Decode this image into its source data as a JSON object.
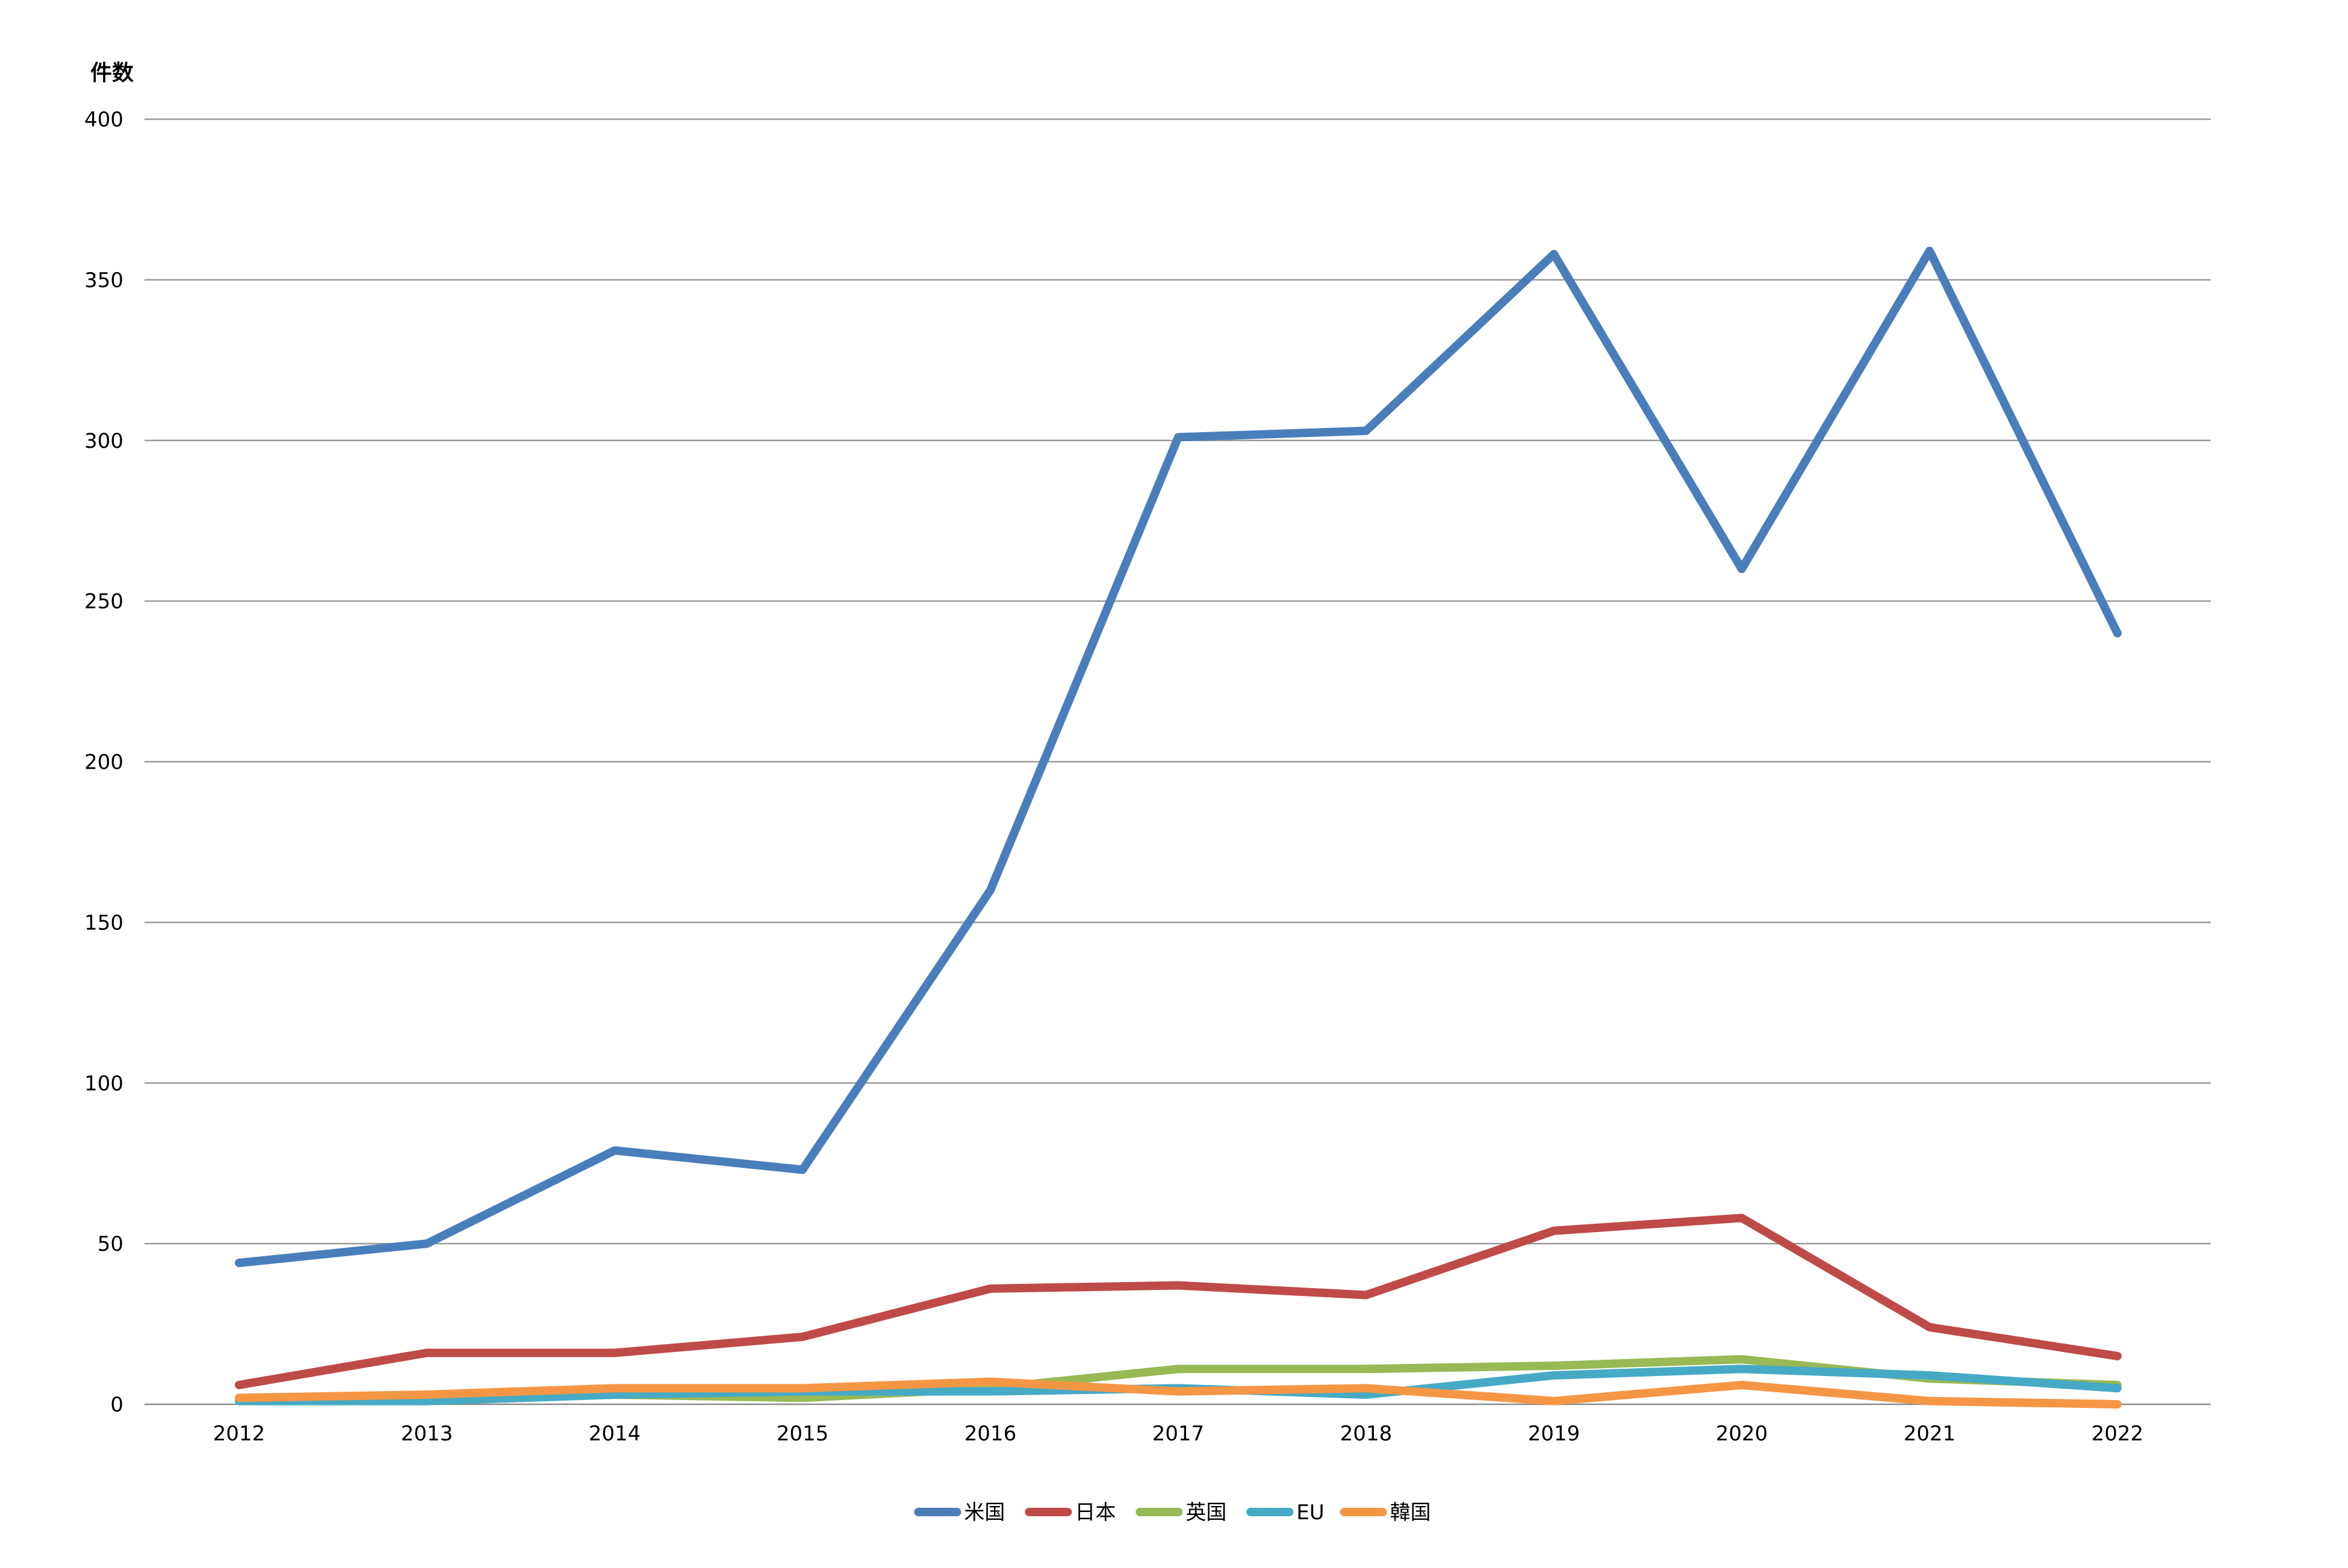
{
  "chart_data": {
    "type": "line",
    "title": "",
    "xlabel": "",
    "ylabel": "件数",
    "ylim": [
      0,
      400
    ],
    "yticks": [
      0,
      50,
      100,
      150,
      200,
      250,
      300,
      350,
      400
    ],
    "grid": true,
    "legend_position": "bottom",
    "categories": [
      "2012",
      "2013",
      "2014",
      "2015",
      "2016",
      "2017",
      "2018",
      "2019",
      "2020",
      "2021",
      "2022"
    ],
    "series": [
      {
        "name": "米国",
        "color": "#4a7ebb",
        "values": [
          44,
          50,
          79,
          73,
          160,
          301,
          303,
          358,
          260,
          359,
          240
        ]
      },
      {
        "name": "日本",
        "color": "#be4b48",
        "values": [
          6,
          16,
          16,
          21,
          36,
          37,
          34,
          54,
          58,
          24,
          15
        ]
      },
      {
        "name": "英国",
        "color": "#98b954",
        "values": [
          1,
          1,
          3,
          2,
          5,
          11,
          11,
          12,
          14,
          8,
          6
        ]
      },
      {
        "name": "EU",
        "color": "#46aac5",
        "values": [
          1,
          1,
          3,
          4,
          4,
          5,
          3,
          9,
          11,
          9,
          5
        ]
      },
      {
        "name": "韓国",
        "color": "#f59645",
        "values": [
          2,
          3,
          5,
          5,
          7,
          4,
          5,
          1,
          6,
          1,
          0
        ]
      }
    ]
  }
}
